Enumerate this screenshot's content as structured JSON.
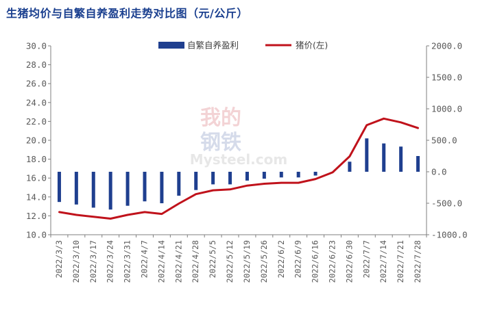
{
  "title": "生猪均价与自繁自养盈利走势对比图（元/公斤）",
  "watermark": {
    "line1": "我的",
    "line2": "钢铁",
    "line3": "Mysteel.com"
  },
  "colors": {
    "bar": "#1f3f8f",
    "line": "#c0121b",
    "axis": "#7f7f7f",
    "text": "#595959"
  },
  "chart_data": {
    "type": "bar-line",
    "title": "生猪均价与自繁自养盈利走势对比图（元/公斤）",
    "categories": [
      "2022/3/3",
      "2022/3/10",
      "2022/3/17",
      "2022/3/24",
      "2022/3/31",
      "2022/4/7",
      "2022/4/14",
      "2022/4/21",
      "2022/4/28",
      "2022/5/5",
      "2022/5/12",
      "2022/5/19",
      "2022/5/26",
      "2022/6/2",
      "2022/6/9",
      "2022/6/16",
      "2022/6/23",
      "2022/6/30",
      "2022/7/7",
      "2022/7/14",
      "2022/7/21",
      "2022/7/28"
    ],
    "series": [
      {
        "name": "自繁自养盈利",
        "type": "bar",
        "axis": "right",
        "values": [
          -480,
          -520,
          -570,
          -600,
          -540,
          -470,
          -500,
          -380,
          -290,
          -200,
          -200,
          -140,
          -110,
          -90,
          -90,
          -60,
          -10,
          160,
          530,
          450,
          400,
          250
        ]
      },
      {
        "name": "猪价(左)",
        "type": "line",
        "axis": "left",
        "values": [
          12.4,
          12.1,
          11.9,
          11.7,
          12.1,
          12.4,
          12.2,
          13.3,
          14.3,
          14.7,
          14.8,
          15.2,
          15.4,
          15.5,
          15.5,
          15.9,
          16.6,
          18.3,
          21.6,
          22.3,
          21.9,
          21.3
        ]
      }
    ],
    "y_left": {
      "min": 10,
      "max": 30,
      "step": 2,
      "tick_labels": [
        "10.0",
        "12.0",
        "14.0",
        "16.0",
        "18.0",
        "20.0",
        "22.0",
        "24.0",
        "26.0",
        "28.0",
        "30.0"
      ]
    },
    "y_right": {
      "min": -1000,
      "max": 2000,
      "step": 500,
      "tick_labels": [
        "-1000.0",
        "-500.0",
        "0.0",
        "500.0",
        "1000.0",
        "1500.0",
        "2000.0"
      ]
    },
    "legend": [
      {
        "label": "自繁自养盈利",
        "kind": "bar"
      },
      {
        "label": "猪价(左)",
        "kind": "line"
      }
    ],
    "legend_position": "top-center",
    "grid": false
  }
}
